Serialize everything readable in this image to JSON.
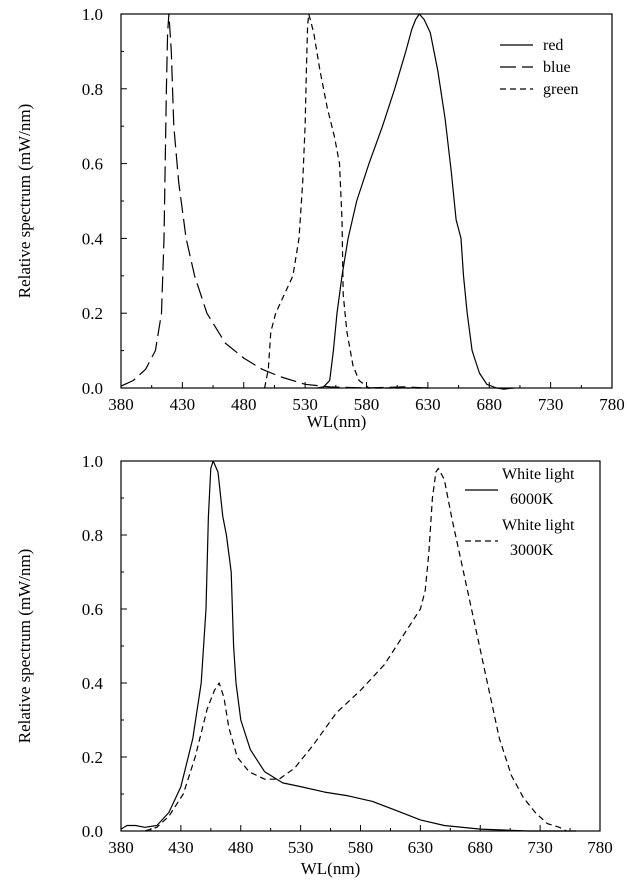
{
  "chart_data": [
    {
      "type": "line",
      "xlabel": "WL(nm)",
      "ylabel": "Relative spectrum (mW/nm)",
      "xlim": [
        380,
        780
      ],
      "ylim": [
        0,
        1.0
      ],
      "xticks": [
        "380",
        "430",
        "480",
        "530",
        "580",
        "630",
        "680",
        "730",
        "780"
      ],
      "yticks": [
        "0.0",
        "0.2",
        "0.4",
        "0.6",
        "0.8",
        "1.0"
      ],
      "grid": false,
      "legend_position": "top-right",
      "series": [
        {
          "name": "red",
          "style": "solid",
          "points": [
            [
              540,
              0.0
            ],
            [
              545,
              0.003
            ],
            [
              550,
              0.02
            ],
            [
              553,
              0.1
            ],
            [
              556,
              0.2
            ],
            [
              560,
              0.3
            ],
            [
              565,
              0.4
            ],
            [
              572,
              0.5
            ],
            [
              582,
              0.6
            ],
            [
              593,
              0.7
            ],
            [
              603,
              0.8
            ],
            [
              612,
              0.9
            ],
            [
              617,
              0.96
            ],
            [
              620,
              0.985
            ],
            [
              623,
              1.0
            ],
            [
              627,
              0.985
            ],
            [
              632,
              0.95
            ],
            [
              638,
              0.85
            ],
            [
              644,
              0.72
            ],
            [
              649,
              0.58
            ],
            [
              653,
              0.45
            ],
            [
              657,
              0.4
            ],
            [
              659,
              0.3
            ],
            [
              662,
              0.2
            ],
            [
              666,
              0.1
            ],
            [
              672,
              0.04
            ],
            [
              678,
              0.01
            ],
            [
              686,
              0.0
            ],
            [
              692,
              -0.003
            ],
            [
              700,
              0.0
            ]
          ]
        },
        {
          "name": "blue",
          "style": "long-dash",
          "points": [
            [
              380,
              0.005
            ],
            [
              390,
              0.02
            ],
            [
              400,
              0.05
            ],
            [
              408,
              0.1
            ],
            [
              413,
              0.2
            ],
            [
              415,
              0.4
            ],
            [
              416,
              0.6
            ],
            [
              417,
              0.8
            ],
            [
              418,
              0.95
            ],
            [
              419,
              1.0
            ],
            [
              421,
              0.9
            ],
            [
              423,
              0.7
            ],
            [
              427,
              0.55
            ],
            [
              433,
              0.4
            ],
            [
              440,
              0.3
            ],
            [
              450,
              0.2
            ],
            [
              465,
              0.12
            ],
            [
              480,
              0.08
            ],
            [
              495,
              0.05
            ],
            [
              510,
              0.03
            ],
            [
              530,
              0.01
            ],
            [
              550,
              0.003
            ],
            [
              580,
              0.0
            ],
            [
              610,
              0.003
            ],
            [
              630,
              0.0
            ]
          ]
        },
        {
          "name": "green",
          "style": "short-dash",
          "points": [
            [
              497,
              0.0
            ],
            [
              500,
              0.05
            ],
            [
              502,
              0.15
            ],
            [
              506,
              0.2
            ],
            [
              513,
              0.25
            ],
            [
              520,
              0.3
            ],
            [
              525,
              0.4
            ],
            [
              528,
              0.55
            ],
            [
              530,
              0.7
            ],
            [
              531,
              0.85
            ],
            [
              532,
              0.97
            ],
            [
              533,
              1.0
            ],
            [
              537,
              0.95
            ],
            [
              542,
              0.85
            ],
            [
              548,
              0.75
            ],
            [
              554,
              0.67
            ],
            [
              558,
              0.6
            ],
            [
              560,
              0.45
            ],
            [
              561,
              0.25
            ],
            [
              564,
              0.15
            ],
            [
              569,
              0.06
            ],
            [
              574,
              0.02
            ],
            [
              582,
              0.0
            ],
            [
              600,
              0.0
            ],
            [
              630,
              0.0
            ]
          ]
        }
      ]
    },
    {
      "type": "line",
      "xlabel": "WL(nm)",
      "ylabel": "Relative spectrum (mW/nm)",
      "xlim": [
        380,
        780
      ],
      "ylim": [
        0,
        1.0
      ],
      "xticks": [
        "380",
        "430",
        "480",
        "530",
        "580",
        "630",
        "680",
        "730",
        "780"
      ],
      "yticks": [
        "0.0",
        "0.2",
        "0.4",
        "0.6",
        "0.8",
        "1.0"
      ],
      "grid": false,
      "legend_position": "top-right",
      "series": [
        {
          "name": "White light 6000K",
          "legend_lines": [
            "White light",
            "6000K"
          ],
          "style": "solid",
          "points": [
            [
              380,
              0.005
            ],
            [
              385,
              0.015
            ],
            [
              392,
              0.015
            ],
            [
              400,
              0.01
            ],
            [
              410,
              0.015
            ],
            [
              420,
              0.05
            ],
            [
              430,
              0.12
            ],
            [
              440,
              0.25
            ],
            [
              447,
              0.4
            ],
            [
              451,
              0.6
            ],
            [
              453,
              0.85
            ],
            [
              455,
              0.98
            ],
            [
              457,
              1.0
            ],
            [
              461,
              0.97
            ],
            [
              465,
              0.85
            ],
            [
              468,
              0.8
            ],
            [
              472,
              0.7
            ],
            [
              474,
              0.5
            ],
            [
              476,
              0.4
            ],
            [
              480,
              0.3
            ],
            [
              488,
              0.22
            ],
            [
              500,
              0.16
            ],
            [
              515,
              0.13
            ],
            [
              530,
              0.12
            ],
            [
              550,
              0.105
            ],
            [
              570,
              0.095
            ],
            [
              590,
              0.08
            ],
            [
              610,
              0.055
            ],
            [
              630,
              0.03
            ],
            [
              650,
              0.015
            ],
            [
              680,
              0.005
            ],
            [
              720,
              0.0
            ],
            [
              760,
              0.0
            ]
          ]
        },
        {
          "name": "White light 3000K",
          "legend_lines": [
            "White light",
            "3000K"
          ],
          "style": "short-dash",
          "points": [
            [
              400,
              0.0
            ],
            [
              410,
              0.01
            ],
            [
              420,
              0.04
            ],
            [
              432,
              0.1
            ],
            [
              442,
              0.2
            ],
            [
              452,
              0.33
            ],
            [
              458,
              0.38
            ],
            [
              462,
              0.4
            ],
            [
              466,
              0.36
            ],
            [
              470,
              0.28
            ],
            [
              477,
              0.2
            ],
            [
              487,
              0.16
            ],
            [
              500,
              0.14
            ],
            [
              512,
              0.14
            ],
            [
              525,
              0.17
            ],
            [
              540,
              0.23
            ],
            [
              560,
              0.32
            ],
            [
              580,
              0.38
            ],
            [
              600,
              0.45
            ],
            [
              620,
              0.55
            ],
            [
              630,
              0.6
            ],
            [
              634,
              0.65
            ],
            [
              637,
              0.75
            ],
            [
              640,
              0.9
            ],
            [
              643,
              0.97
            ],
            [
              645,
              0.98
            ],
            [
              650,
              0.95
            ],
            [
              656,
              0.85
            ],
            [
              666,
              0.7
            ],
            [
              676,
              0.55
            ],
            [
              686,
              0.4
            ],
            [
              696,
              0.25
            ],
            [
              706,
              0.15
            ],
            [
              716,
              0.09
            ],
            [
              726,
              0.05
            ],
            [
              736,
              0.02
            ],
            [
              746,
              0.01
            ],
            [
              752,
              0.0
            ]
          ]
        }
      ]
    }
  ]
}
